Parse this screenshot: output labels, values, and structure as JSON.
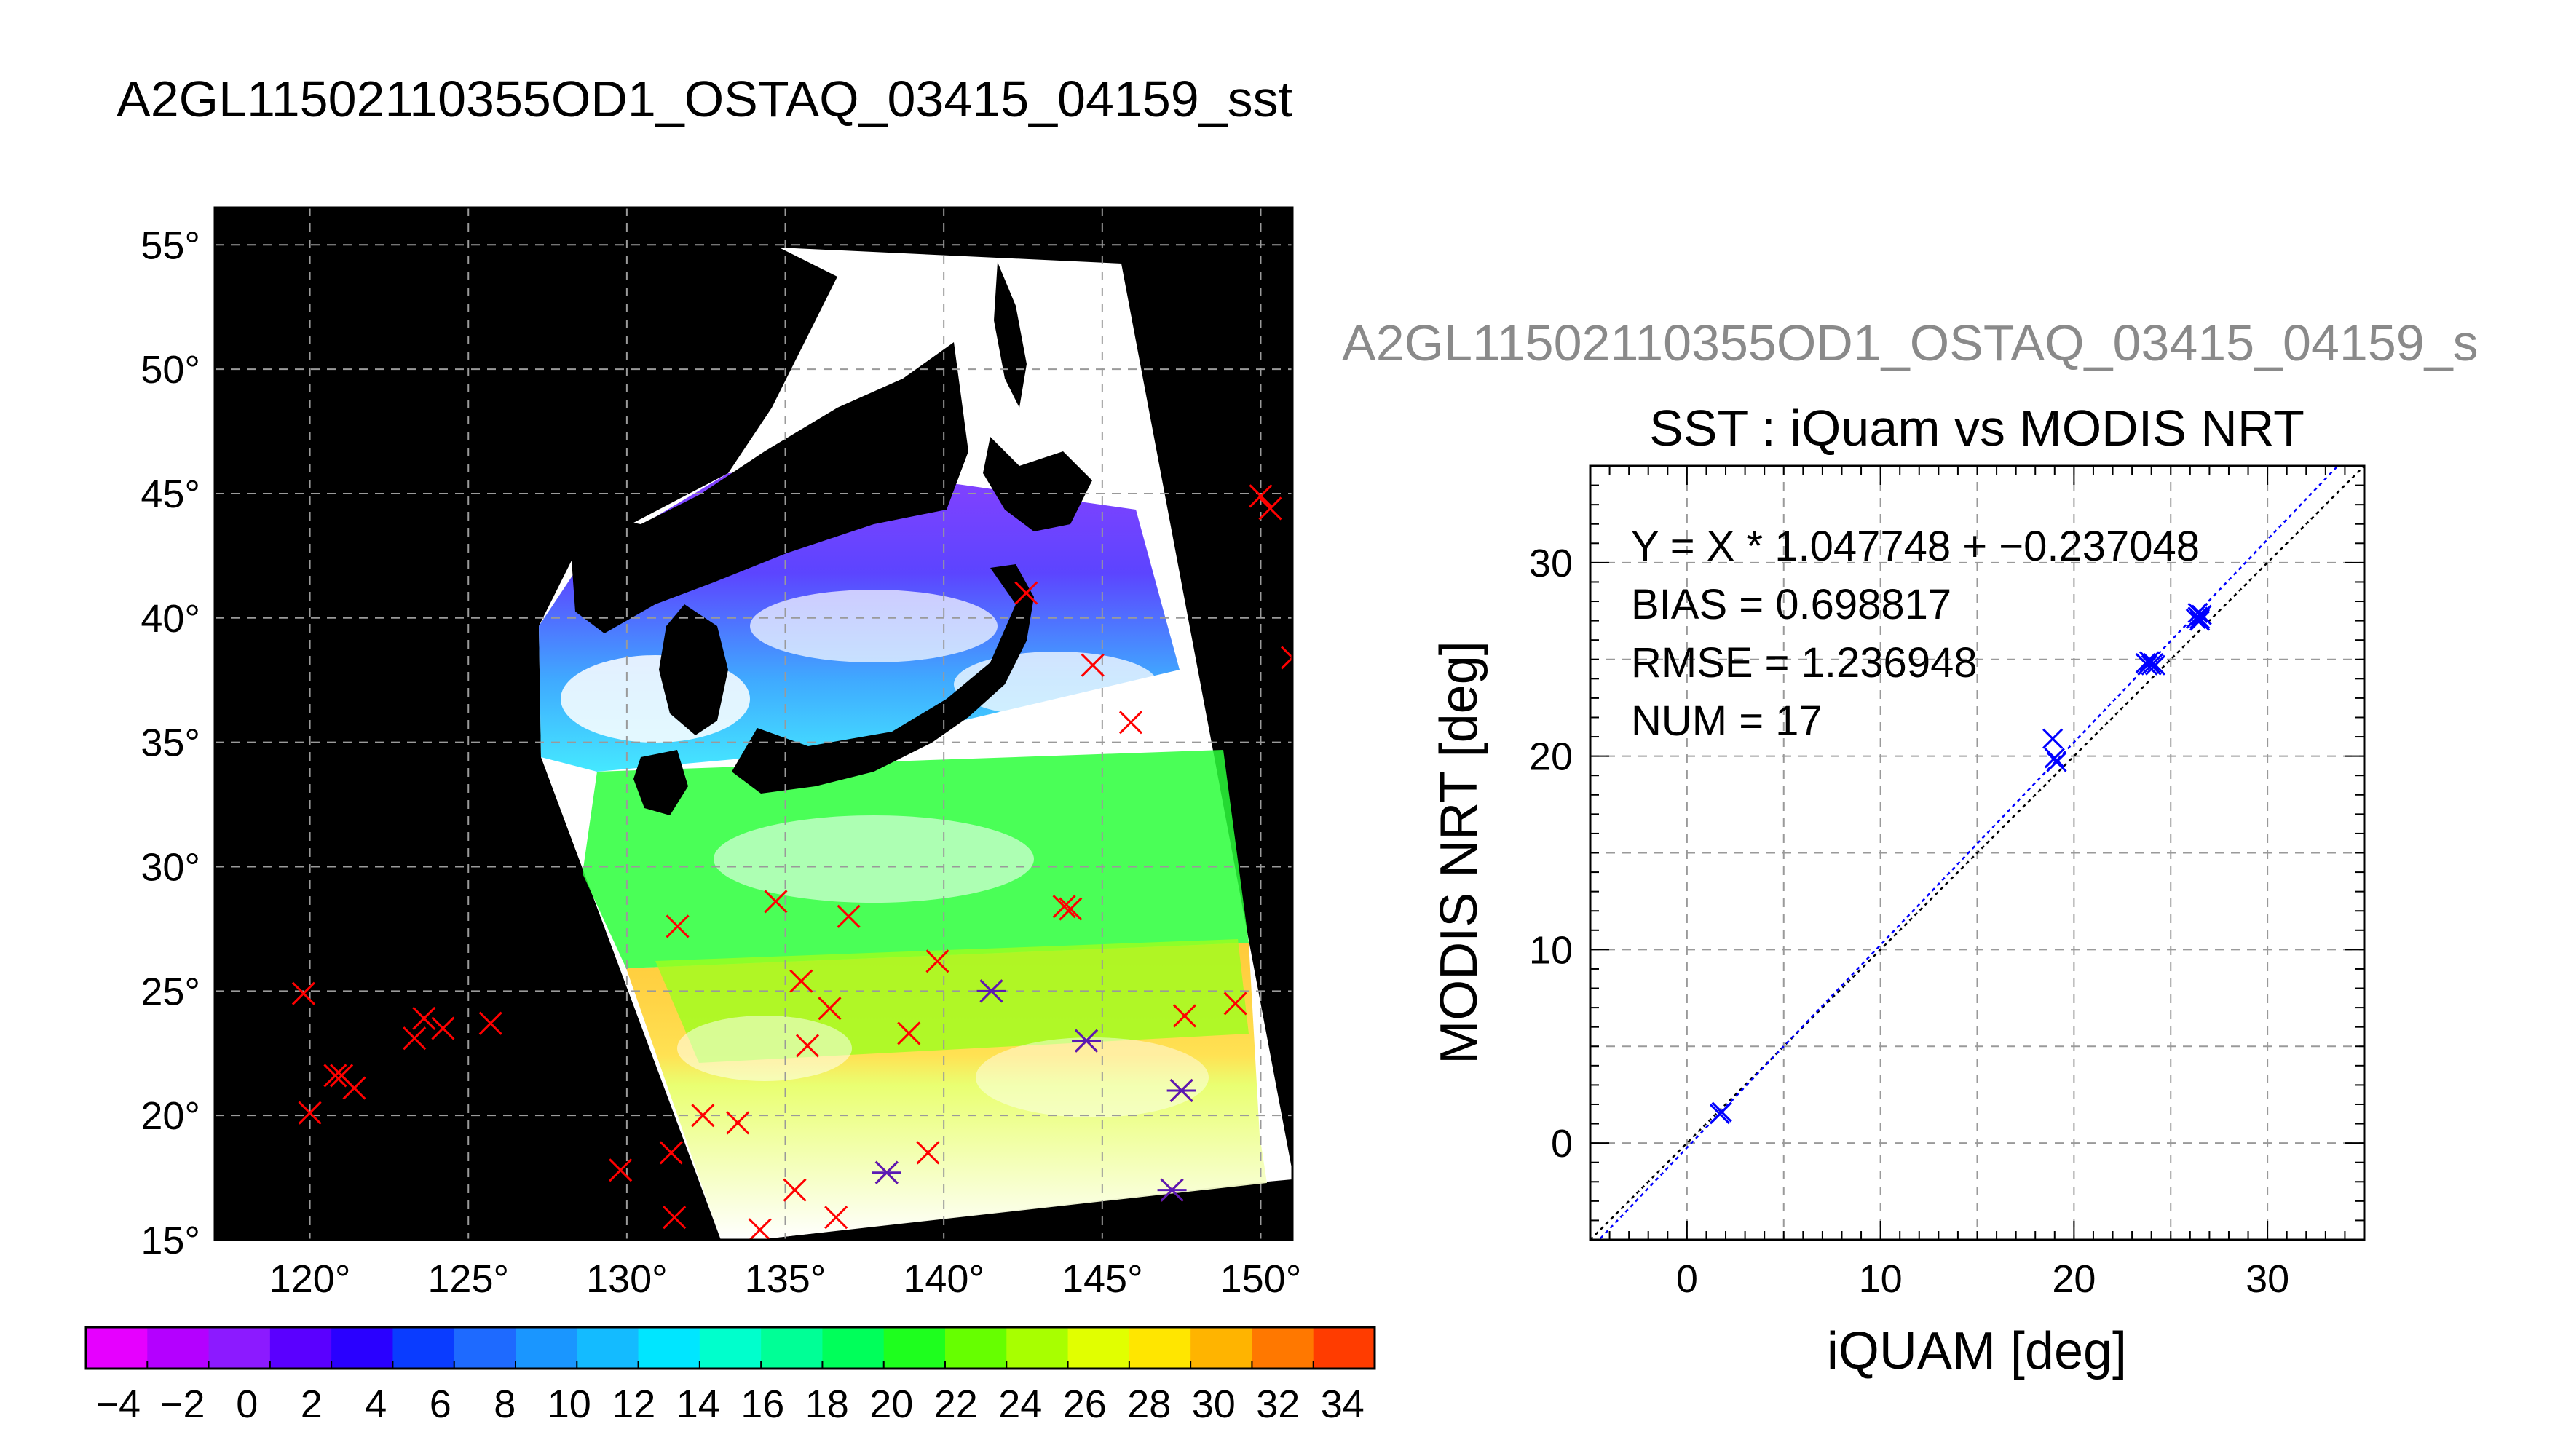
{
  "title": "A2GL11502110355OD1_OSTAQ_03415_04159_sst",
  "chart_data": [
    {
      "type": "map",
      "title": "A2GL11502110355OD1_OSTAQ_03415_04159_sst",
      "xlim": [
        117,
        151
      ],
      "ylim": [
        15,
        56.5
      ],
      "x_ticks": [
        120,
        125,
        130,
        135,
        140,
        145,
        150
      ],
      "y_ticks": [
        15,
        20,
        25,
        30,
        35,
        40,
        45,
        50,
        55
      ],
      "degree_symbol": "°",
      "grid": true,
      "background_color": "#000000",
      "red_markers": [
        [
          119.8,
          24.9
        ],
        [
          120.0,
          20.1
        ],
        [
          120.8,
          21.6
        ],
        [
          121.0,
          21.6
        ],
        [
          121.4,
          21.1
        ],
        [
          123.3,
          23.1
        ],
        [
          123.6,
          23.9
        ],
        [
          124.2,
          23.5
        ],
        [
          125.7,
          23.7
        ],
        [
          129.8,
          17.8
        ],
        [
          131.4,
          18.5
        ],
        [
          131.5,
          15.9
        ],
        [
          131.6,
          27.6
        ],
        [
          132.4,
          20.0
        ],
        [
          133.5,
          19.7
        ],
        [
          134.2,
          15.4
        ],
        [
          134.7,
          28.6
        ],
        [
          135.3,
          17.0
        ],
        [
          135.5,
          25.4
        ],
        [
          135.7,
          22.8
        ],
        [
          136.4,
          24.3
        ],
        [
          136.6,
          15.9
        ],
        [
          137.0,
          28.0
        ],
        [
          138.2,
          17.7
        ],
        [
          138.9,
          23.3
        ],
        [
          139.5,
          18.5
        ],
        [
          139.8,
          26.2
        ],
        [
          141.5,
          25.0
        ],
        [
          142.6,
          41.0
        ],
        [
          143.8,
          28.4
        ],
        [
          144.0,
          28.3
        ],
        [
          144.5,
          23.0
        ],
        [
          144.7,
          38.1
        ],
        [
          145.9,
          35.8
        ],
        [
          147.2,
          17.0
        ],
        [
          147.5,
          21.0
        ],
        [
          147.6,
          24.0
        ],
        [
          149.2,
          24.5
        ],
        [
          150.0,
          44.9
        ],
        [
          150.3,
          44.4
        ],
        [
          151.0,
          38.4
        ]
      ],
      "purple_markers": [
        [
          138.2,
          17.7
        ],
        [
          141.5,
          25.0
        ],
        [
          144.5,
          23.0
        ],
        [
          147.2,
          17.0
        ],
        [
          147.5,
          21.0
        ]
      ]
    },
    {
      "type": "colorbar",
      "range": [
        -5,
        35
      ],
      "tick_labels": [
        "−4",
        "−2",
        "0",
        "2",
        "4",
        "6",
        "8",
        "10",
        "12",
        "14",
        "16",
        "18",
        "20",
        "22",
        "24",
        "26",
        "28",
        "30",
        "32",
        "34"
      ],
      "tick_values": [
        -4,
        -2,
        0,
        2,
        4,
        6,
        8,
        10,
        12,
        14,
        16,
        18,
        20,
        22,
        24,
        26,
        28,
        30,
        32,
        34
      ],
      "segments": 20,
      "colors": [
        "#e600ff",
        "#b400ff",
        "#8c1aff",
        "#5a00ff",
        "#2a00ff",
        "#0a3cff",
        "#1e6aff",
        "#1a96ff",
        "#14bbff",
        "#00e6ff",
        "#00ffcc",
        "#00ff96",
        "#00ff5a",
        "#1eff1e",
        "#66ff00",
        "#a8ff00",
        "#e1ff00",
        "#ffe600",
        "#ffb400",
        "#ff7800",
        "#ff3c00"
      ]
    },
    {
      "type": "scatter",
      "overlay_title": "A2GL11502110355OD1_OSTAQ_03415_04159_s",
      "title": "SST : iQuam vs MODIS NRT",
      "xlabel": "iQUAM [deg]",
      "ylabel": "MODIS NRT [deg]",
      "xlim": [
        -5,
        35
      ],
      "ylim": [
        -5,
        35
      ],
      "x_ticks": [
        0,
        10,
        20,
        30
      ],
      "y_ticks": [
        0,
        10,
        20,
        30
      ],
      "grid": true,
      "annotations": [
        "Y = X * 1.047748 + −0.237048",
        "BIAS = 0.698817",
        "RMSE = 1.236948",
        "NUM = 17"
      ],
      "fit": {
        "slope": 1.047748,
        "intercept": -0.237048,
        "color": "#0000ff"
      },
      "identity_line_color": "#000000",
      "marker_color": "#0000ff",
      "points": [
        [
          1.7,
          1.5
        ],
        [
          1.8,
          1.6
        ],
        [
          18.9,
          20.9
        ],
        [
          19.0,
          19.9
        ],
        [
          19.1,
          19.7
        ],
        [
          23.7,
          24.8
        ],
        [
          23.8,
          24.7
        ],
        [
          23.9,
          24.9
        ],
        [
          24.0,
          24.7
        ],
        [
          24.1,
          24.8
        ],
        [
          24.2,
          24.7
        ],
        [
          26.3,
          27.1
        ],
        [
          26.4,
          27.4
        ],
        [
          26.5,
          27.0
        ],
        [
          26.6,
          27.3
        ],
        [
          26.4,
          27.2
        ],
        [
          26.5,
          27.1
        ]
      ]
    }
  ]
}
